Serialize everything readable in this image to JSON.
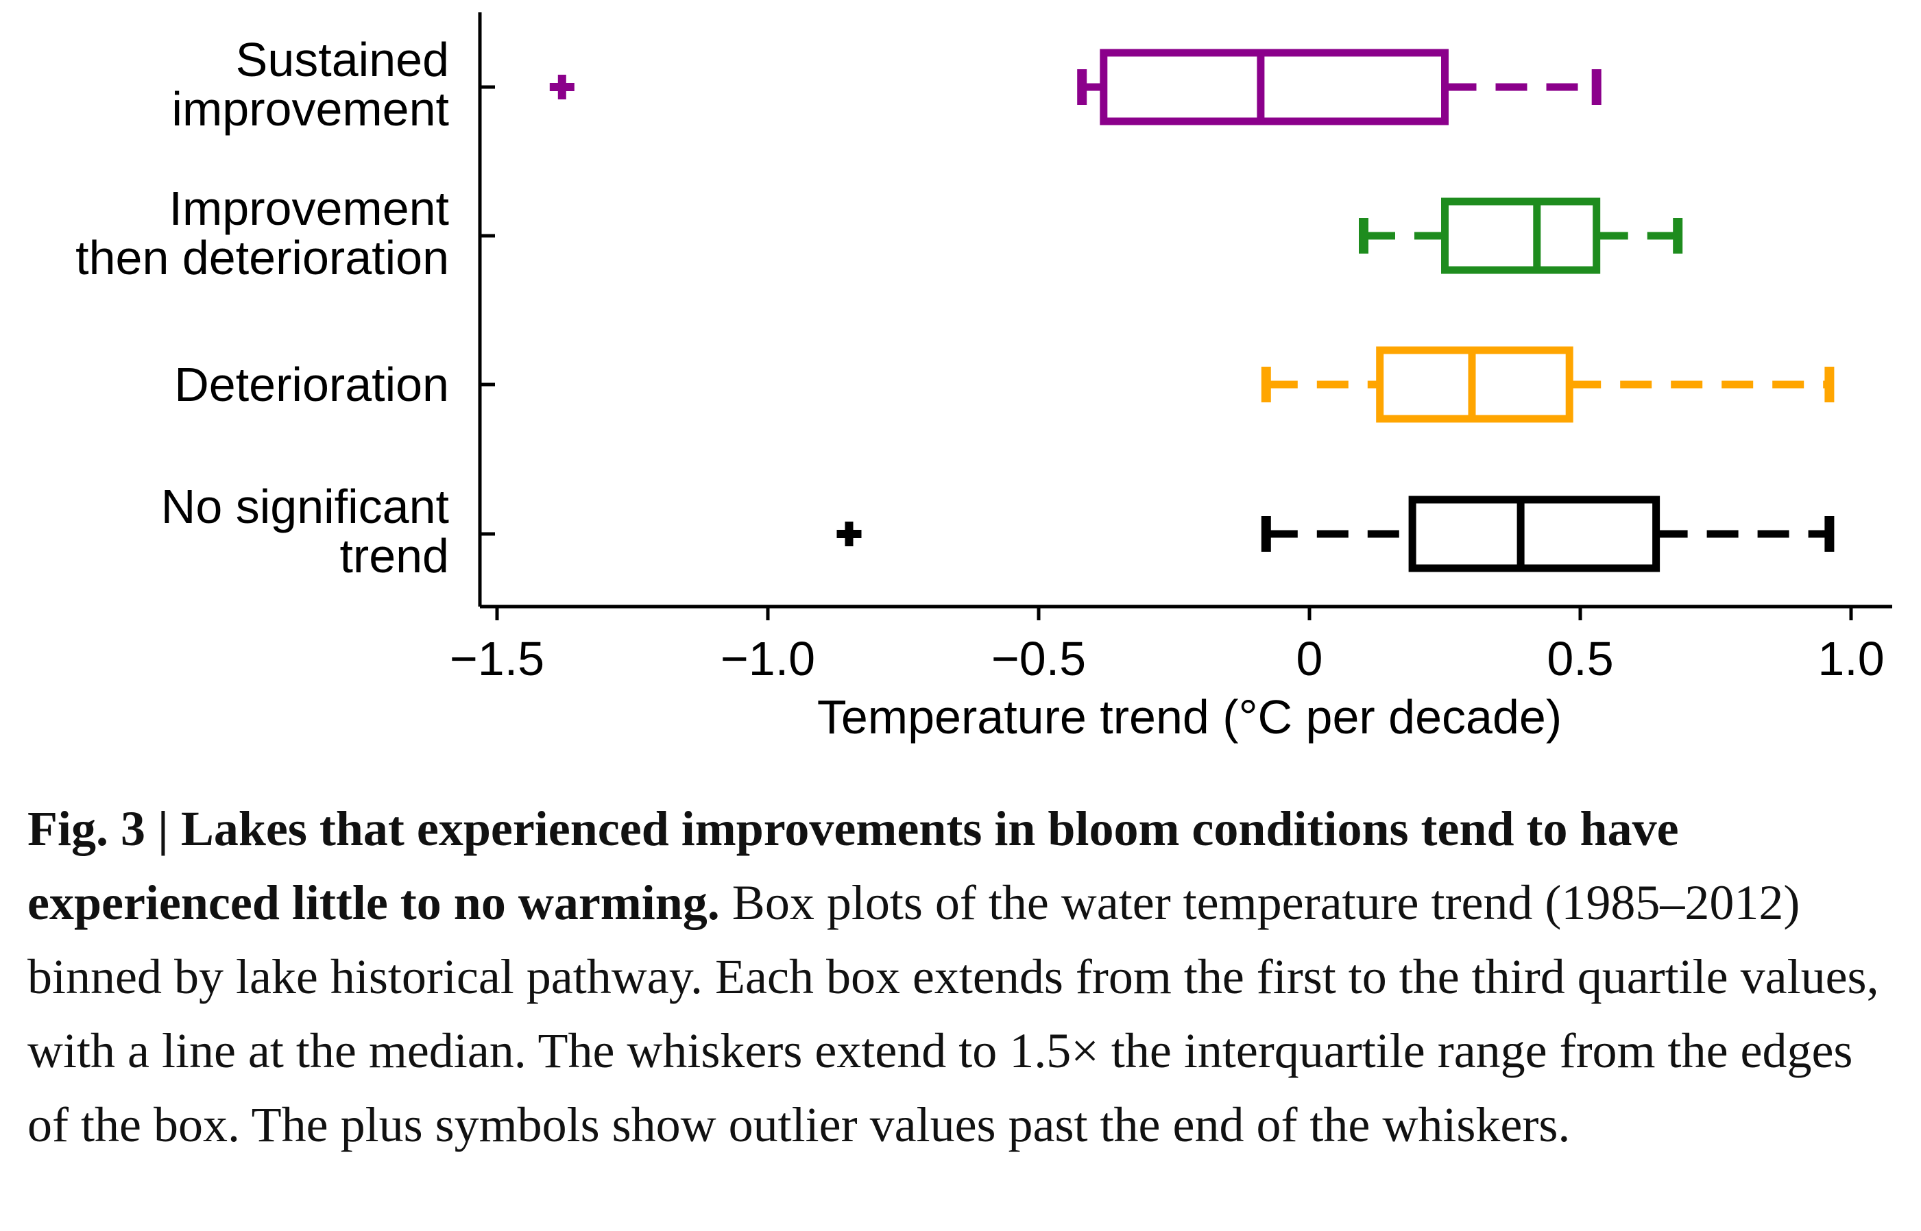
{
  "chart_data": {
    "type": "boxplot",
    "orientation": "horizontal",
    "xlabel": "Temperature trend (°C per decade)",
    "xlim": [
      -1.53,
      1.07
    ],
    "xticks": [
      -1.5,
      -1.0,
      -0.5,
      0,
      0.5,
      1.0
    ],
    "xtick_labels": [
      "−1.5",
      "−1.0",
      "−0.5",
      "0",
      "0.5",
      "1.0"
    ],
    "series": [
      {
        "name": "Sustained improvement",
        "label_lines": [
          "Sustained",
          "improvement"
        ],
        "color": "#8B008B",
        "whisker_low": -0.42,
        "q1": -0.38,
        "median": -0.09,
        "q3": 0.25,
        "whisker_high": 0.53,
        "outliers": [
          -1.38
        ]
      },
      {
        "name": "Improvement then deterioration",
        "label_lines": [
          "Improvement",
          "then deterioration"
        ],
        "color": "#1E8C1E",
        "whisker_low": 0.1,
        "q1": 0.25,
        "median": 0.42,
        "q3": 0.53,
        "whisker_high": 0.68,
        "outliers": []
      },
      {
        "name": "Deterioration",
        "label_lines": [
          "Deterioration"
        ],
        "color": "#FFA500",
        "whisker_low": -0.08,
        "q1": 0.13,
        "median": 0.3,
        "q3": 0.48,
        "whisker_high": 0.96,
        "outliers": []
      },
      {
        "name": "No significant trend",
        "label_lines": [
          "No significant",
          "trend"
        ],
        "color": "#000000",
        "whisker_low": -0.08,
        "q1": 0.19,
        "median": 0.39,
        "q3": 0.64,
        "whisker_high": 0.96,
        "outliers": [
          -0.85
        ]
      }
    ]
  },
  "caption": {
    "bold": "Fig. 3 | Lakes that experienced improvements in bloom conditions tend to have experienced little to no warming.",
    "text": " Box plots of the water temperature trend (1985–2012) binned by lake historical pathway. Each box extends from the first to the third quartile values, with a line at the median. The whiskers extend to 1.5× the interquartile range from the edges of the box. The plus symbols show outlier values past the end of the whiskers."
  }
}
